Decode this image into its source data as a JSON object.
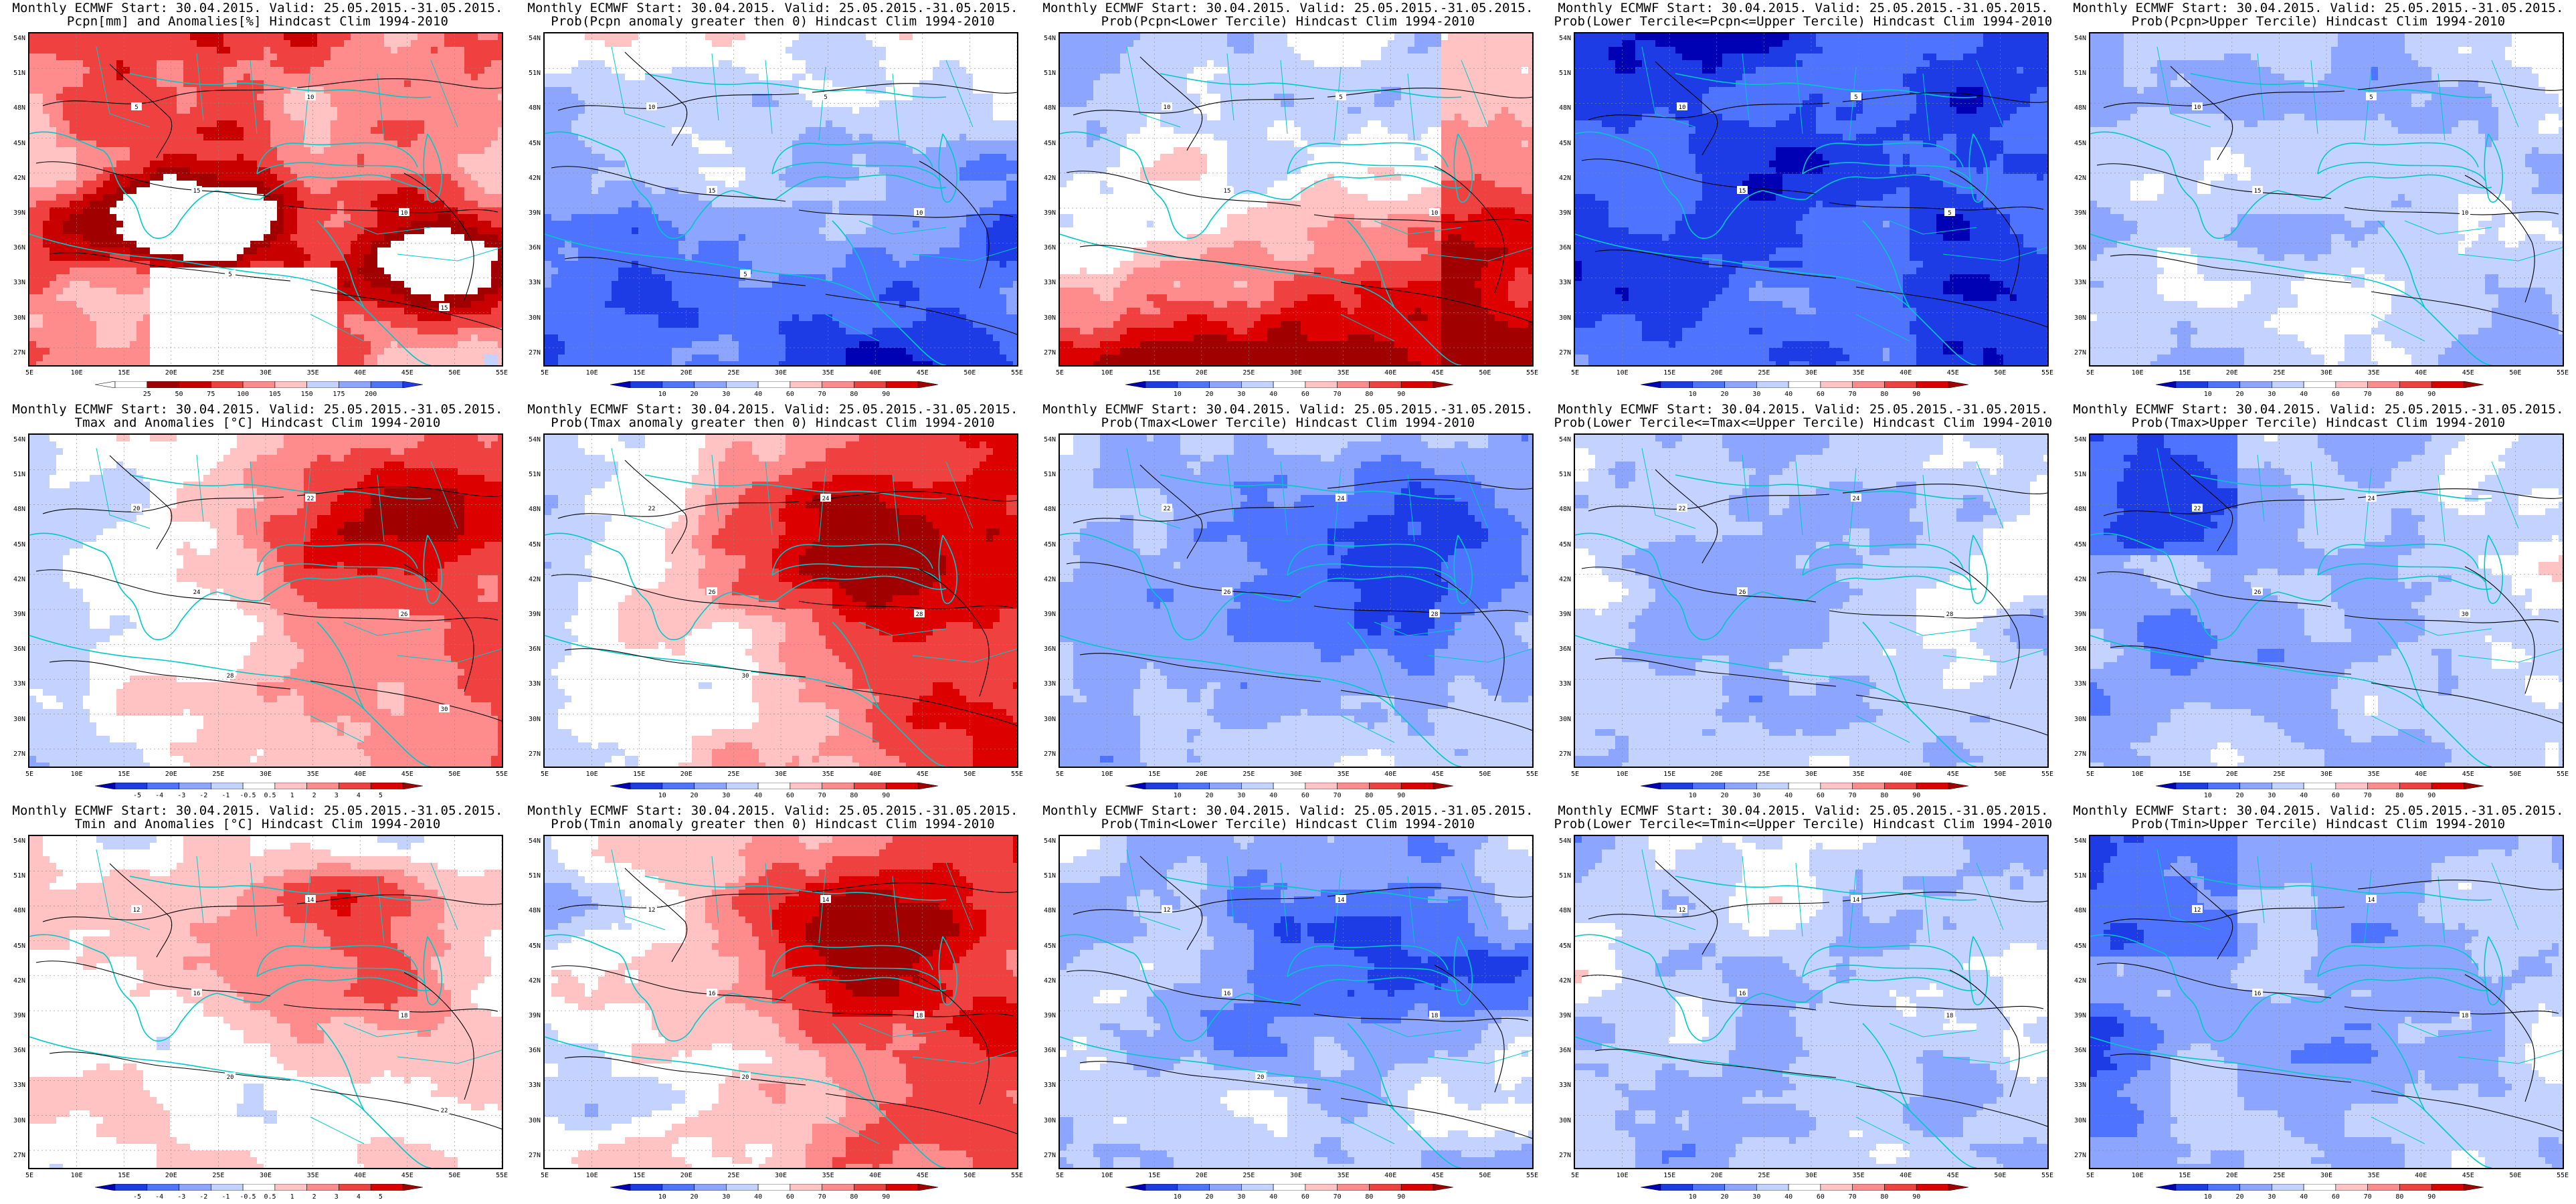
{
  "title_line1": "Monthly ECMWF Start: 30.04.2015. Valid: 25.05.2015.-31.05.2015.",
  "lat_labels": [
    "54N",
    "51N",
    "48N",
    "45N",
    "42N",
    "39N",
    "36N",
    "33N",
    "30N",
    "27N"
  ],
  "lon_labels": [
    "5E",
    "10E",
    "15E",
    "20E",
    "25E",
    "30E",
    "35E",
    "40E",
    "45E",
    "50E",
    "55E"
  ],
  "colorbars": {
    "pcpn_anom": [
      "25",
      "50",
      "75",
      "100",
      "105",
      "150",
      "175",
      "200"
    ],
    "temp_anom": [
      "-5",
      "-4",
      "-3",
      "-2",
      "-1",
      "-0.5",
      "0.5",
      "1",
      "2",
      "3",
      "4",
      "5"
    ],
    "prob": [
      "10",
      "20",
      "30",
      "40",
      "60",
      "70",
      "80",
      "90"
    ]
  },
  "colors": {
    "prob": [
      "#0000b4",
      "#1e3ce6",
      "#4d73ff",
      "#8ca5ff",
      "#c3d2ff",
      "#ffffff",
      "#ffc3c3",
      "#ff8c8c",
      "#f04141",
      "#dc0000",
      "#a00000"
    ],
    "pcpn_anom": [
      "#ffffff",
      "#ffffff",
      "#a00000",
      "#c80000",
      "#f04141",
      "#ff8c8c",
      "#ffc3c3",
      "#c3d2ff",
      "#8ca5ff",
      "#4d73ff",
      "#1e3ce6"
    ],
    "temp_anom": [
      "#0000b4",
      "#1e3ce6",
      "#4d73ff",
      "#8ca5ff",
      "#c3d2ff",
      "#ffffff",
      "#ffc3c3",
      "#ff8c8c",
      "#f04141",
      "#dc0000",
      "#a00000"
    ],
    "coast": "#00c8c8",
    "contour": "#000000"
  },
  "panels": [
    {
      "id": "pcpn-anom",
      "row": 0,
      "col": 0,
      "line2": "Pcpn[mm] and Anomalies[%] Hindcast Clim 1994-2010",
      "scale": "pcpn_anom",
      "field": "pcpn",
      "contour_labels": [
        "5",
        "10",
        "15",
        "10",
        "5",
        "15"
      ]
    },
    {
      "id": "pcpn-prob-gt0",
      "row": 0,
      "col": 1,
      "line2": "Prob(Pcpn anomaly greater then 0) Hindcast Clim 1994-2010",
      "scale": "prob",
      "field": "cool_south",
      "contour_labels": [
        "10",
        "5",
        "15",
        "10",
        "5"
      ]
    },
    {
      "id": "pcpn-prob-lower",
      "row": 0,
      "col": 2,
      "line2": "Prob(Pcpn<Lower Tercile) Hindcast Clim 1994-2010",
      "scale": "prob",
      "field": "warm_south",
      "contour_labels": [
        "10",
        "5",
        "15",
        "10"
      ]
    },
    {
      "id": "pcpn-prob-middle",
      "row": 0,
      "col": 3,
      "line2": "Prob(Lower Tercile<=Pcpn<=Upper Tercile) Hindcast Clim 1994-2010",
      "scale": "prob",
      "field": "deep_blue",
      "contour_labels": [
        "10",
        "5",
        "15",
        "5"
      ]
    },
    {
      "id": "pcpn-prob-upper",
      "row": 0,
      "col": 4,
      "line2": "Prob(Pcpn>Upper Tercile) Hindcast Clim 1994-2010",
      "scale": "prob",
      "field": "mild_blue",
      "contour_labels": [
        "10",
        "5",
        "15",
        "10"
      ]
    },
    {
      "id": "tmax-anom",
      "row": 1,
      "col": 0,
      "line2": "Tmax and Anomalies [°C] Hindcast Clim 1994-2010",
      "scale": "temp_anom",
      "field": "warm_east",
      "contour_labels": [
        "20",
        "22",
        "24",
        "26",
        "28",
        "30"
      ]
    },
    {
      "id": "tmax-prob-gt0",
      "row": 1,
      "col": 1,
      "line2": "Prob(Tmax anomaly greater then 0) Hindcast Clim 1994-2010",
      "scale": "prob",
      "field": "warm_east2",
      "contour_labels": [
        "22",
        "24",
        "26",
        "28",
        "30"
      ]
    },
    {
      "id": "tmax-prob-lower",
      "row": 1,
      "col": 2,
      "line2": "Prob(Tmax<Lower Tercile) Hindcast Clim 1994-2010",
      "scale": "prob",
      "field": "blue_east",
      "contour_labels": [
        "22",
        "24",
        "26",
        "28"
      ]
    },
    {
      "id": "tmax-prob-middle",
      "row": 1,
      "col": 3,
      "line2": "Prob(Lower Tercile<=Tmax<=Upper Tercile) Hindcast Clim 1994-2010",
      "scale": "prob",
      "field": "mild_blue",
      "contour_labels": [
        "22",
        "24",
        "26",
        "28"
      ]
    },
    {
      "id": "tmax-prob-upper",
      "row": 1,
      "col": 4,
      "line2": "Prob(Tmax>Upper Tercile) Hindcast Clim 1994-2010",
      "scale": "prob",
      "field": "blue_west",
      "contour_labels": [
        "22",
        "24",
        "26",
        "30"
      ]
    },
    {
      "id": "tmin-anom",
      "row": 2,
      "col": 0,
      "line2": "Tmin and Anomalies [°C] Hindcast Clim 1994-2010",
      "scale": "temp_anom",
      "field": "warm_center",
      "contour_labels": [
        "12",
        "14",
        "16",
        "18",
        "20",
        "22"
      ]
    },
    {
      "id": "tmin-prob-gt0",
      "row": 2,
      "col": 1,
      "line2": "Prob(Tmin anomaly greater then 0) Hindcast Clim 1994-2010",
      "scale": "prob",
      "field": "warm_east2",
      "contour_labels": [
        "12",
        "14",
        "16",
        "18",
        "20"
      ]
    },
    {
      "id": "tmin-prob-lower",
      "row": 2,
      "col": 2,
      "line2": "Prob(Tmin<Lower Tercile) Hindcast Clim 1994-2010",
      "scale": "prob",
      "field": "blue_east",
      "contour_labels": [
        "12",
        "14",
        "16",
        "18",
        "20"
      ]
    },
    {
      "id": "tmin-prob-middle",
      "row": 2,
      "col": 3,
      "line2": "Prob(Lower Tercile<=Tmin<=Upper Tercile) Hindcast Clim 1994-2010",
      "scale": "prob",
      "field": "mild_blue",
      "contour_labels": [
        "12",
        "14",
        "16",
        "18"
      ]
    },
    {
      "id": "tmin-prob-upper",
      "row": 2,
      "col": 4,
      "line2": "Prob(Tmin>Upper Tercile) Hindcast Clim 1994-2010",
      "scale": "prob",
      "field": "blue_west",
      "contour_labels": [
        "12",
        "14",
        "16",
        "18"
      ]
    }
  ]
}
